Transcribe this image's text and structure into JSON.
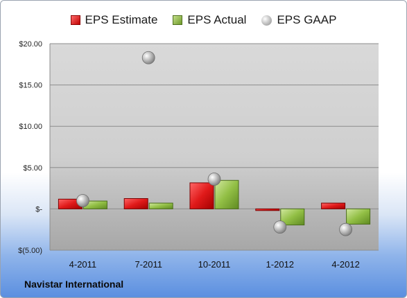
{
  "legend": {
    "estimate": "EPS Estimate",
    "actual": "EPS Actual",
    "gaap": "EPS GAAP"
  },
  "footer": {
    "company": "Navistar International"
  },
  "colors": {
    "estimate": "#d42020",
    "actual": "#8db83a",
    "gaap": "#b0b0b0"
  },
  "chart_data": {
    "type": "bar",
    "categories": [
      "4-2011",
      "7-2011",
      "10-2011",
      "1-2012",
      "4-2012"
    ],
    "series": [
      {
        "name": "EPS Estimate",
        "values": [
          1.18,
          1.25,
          3.15,
          -0.2,
          0.7
        ]
      },
      {
        "name": "EPS Actual",
        "values": [
          0.95,
          0.7,
          3.45,
          -1.95,
          -1.85
        ]
      },
      {
        "name": "EPS GAAP",
        "type": "scatter",
        "values": [
          1.0,
          18.3,
          3.6,
          -2.2,
          -2.5
        ]
      }
    ],
    "ylim": [
      -5,
      20
    ],
    "yticks": [
      20,
      15,
      10,
      5,
      0,
      -5
    ],
    "ytick_labels": [
      "$20.00",
      "$15.00",
      "$10.00",
      "$5.00",
      "$-",
      "$(5.00)"
    ],
    "grid": true,
    "legend_position": "top"
  }
}
